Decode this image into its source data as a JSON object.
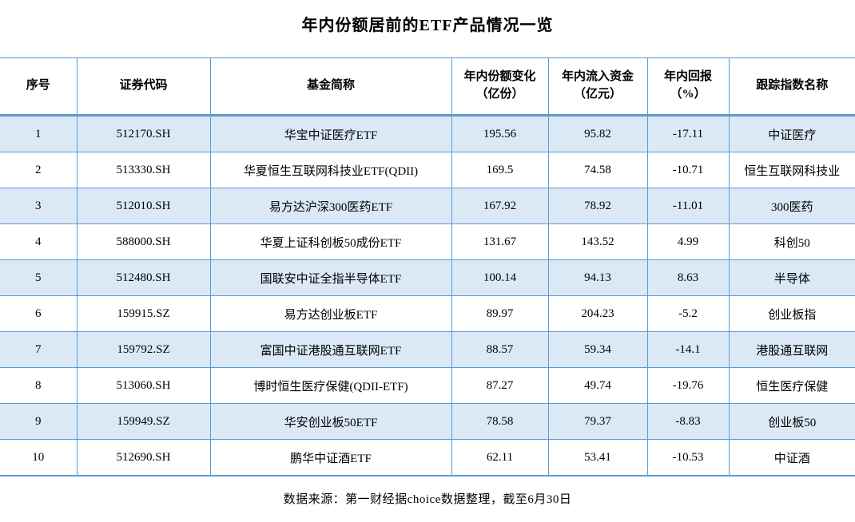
{
  "title": "年内份额居前的ETF产品情况一览",
  "chart_data": {
    "type": "table",
    "title": "年内份额居前的ETF产品情况一览",
    "columns": [
      "序号",
      "证券代码",
      "基金简称",
      "年内份额变化\n（亿份）",
      "年内流入资金\n（亿元）",
      "年内回报\n（%）",
      "跟踪指数名称"
    ],
    "rows": [
      [
        "1",
        "512170.SH",
        "华宝中证医疗ETF",
        "195.56",
        "95.82",
        "-17.11",
        "中证医疗"
      ],
      [
        "2",
        "513330.SH",
        "华夏恒生互联网科技业ETF(QDII)",
        "169.5",
        "74.58",
        "-10.71",
        "恒生互联网科技业"
      ],
      [
        "3",
        "512010.SH",
        "易方达沪深300医药ETF",
        "167.92",
        "78.92",
        "-11.01",
        "300医药"
      ],
      [
        "4",
        "588000.SH",
        "华夏上证科创板50成份ETF",
        "131.67",
        "143.52",
        "4.99",
        "科创50"
      ],
      [
        "5",
        "512480.SH",
        "国联安中证全指半导体ETF",
        "100.14",
        "94.13",
        "8.63",
        "半导体"
      ],
      [
        "6",
        "159915.SZ",
        "易方达创业板ETF",
        "89.97",
        "204.23",
        "-5.2",
        "创业板指"
      ],
      [
        "7",
        "159792.SZ",
        "富国中证港股通互联网ETF",
        "88.57",
        "59.34",
        "-14.1",
        "港股通互联网"
      ],
      [
        "8",
        "513060.SH",
        "博时恒生医疗保健(QDII-ETF)",
        "87.27",
        "49.74",
        "-19.76",
        "恒生医疗保健"
      ],
      [
        "9",
        "159949.SZ",
        "华安创业板50ETF",
        "78.58",
        "79.37",
        "-8.83",
        "创业板50"
      ],
      [
        "10",
        "512690.SH",
        "鹏华中证酒ETF",
        "62.11",
        "53.41",
        "-10.53",
        "中证酒"
      ]
    ]
  },
  "footer": {
    "source_note": "数据来源：第一财经据choice数据整理，截至6月30日"
  },
  "colors": {
    "border": "#5b9bd5",
    "row_shade": "#dbe9f6"
  }
}
